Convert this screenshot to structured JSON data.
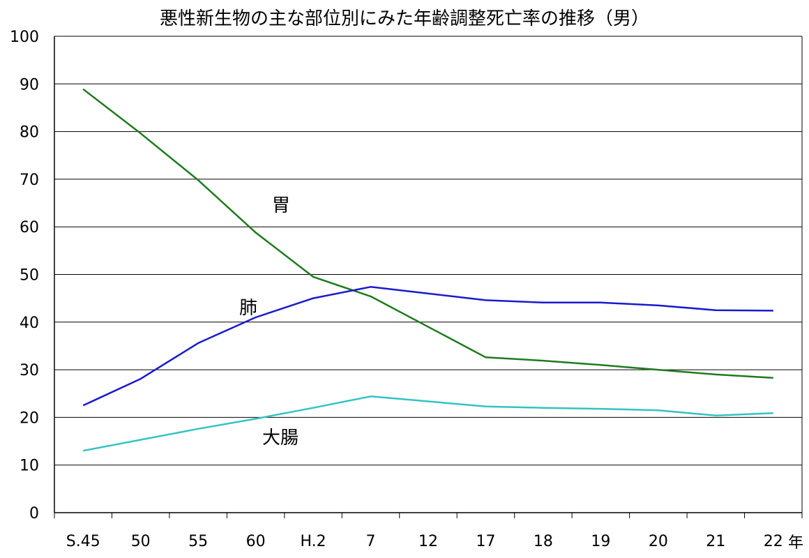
{
  "chart_data": {
    "type": "line",
    "title": "悪性新生物の主な部位別にみた年齢調整死亡率の推移（男）",
    "xlabel": "年",
    "ylabel": "",
    "ylim": [
      0,
      100
    ],
    "yticks": [
      "0",
      "10",
      "20",
      "30",
      "40",
      "50",
      "60",
      "70",
      "80",
      "90",
      "100"
    ],
    "categories": [
      "S.45",
      "50",
      "55",
      "60",
      "H.2",
      "7",
      "12",
      "17",
      "18",
      "19",
      "20",
      "21",
      "22"
    ],
    "grid": true,
    "series": [
      {
        "name": "胃",
        "color": "#1f7a1f",
        "values": [
          88.9,
          79.6,
          69.8,
          58.8,
          49.5,
          45.4,
          null,
          32.6,
          31.9,
          31.0,
          30.0,
          29.0,
          28.3
        ]
      },
      {
        "name": "肺",
        "color": "#1a1acc",
        "values": [
          22.5,
          28.1,
          35.6,
          41.0,
          45.0,
          47.4,
          null,
          44.6,
          44.1,
          44.1,
          43.5,
          42.5,
          42.4
        ]
      },
      {
        "name": "大腸",
        "color": "#33c3c3",
        "values": [
          13.0,
          15.3,
          17.6,
          19.7,
          22.0,
          24.4,
          null,
          22.3,
          22.0,
          21.8,
          21.5,
          20.4,
          20.9
        ]
      }
    ]
  }
}
